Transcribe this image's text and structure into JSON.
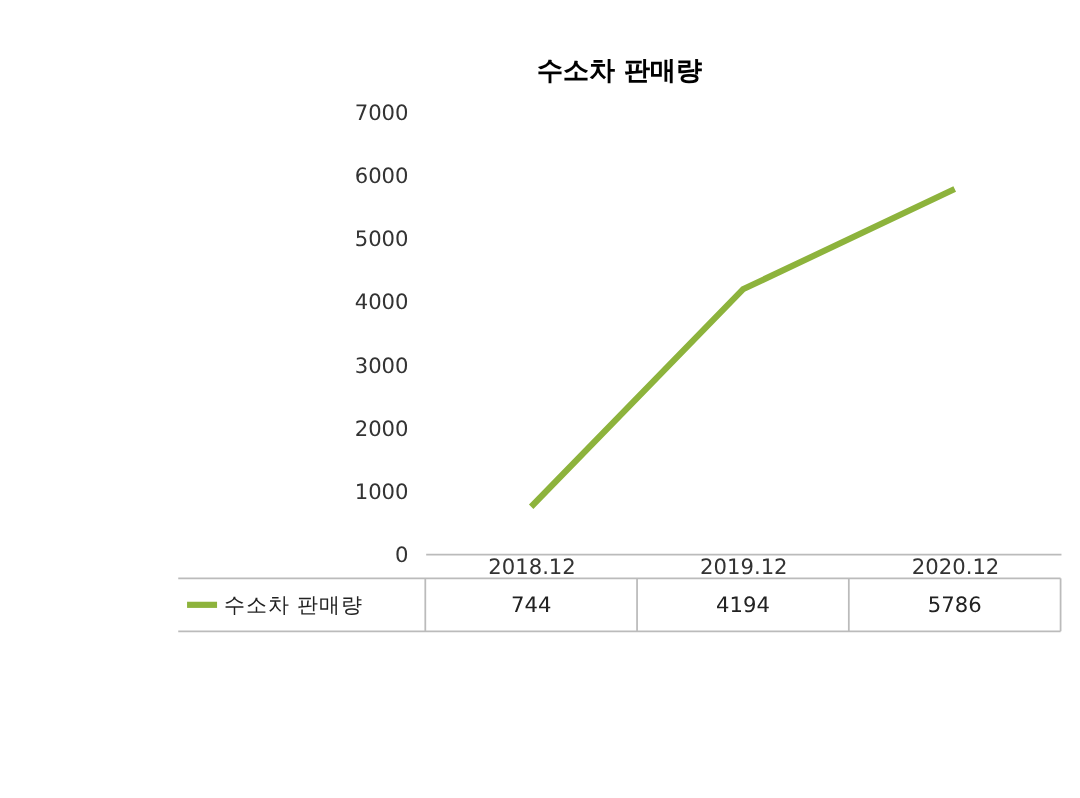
{
  "chart_data": {
    "type": "line",
    "title": "수소차 판매량",
    "categories": [
      "2018.12",
      "2019.12",
      "2020.12"
    ],
    "series": [
      {
        "name": "수소차 판매량",
        "color": "#8db33c",
        "values": [
          744,
          4194,
          5786
        ]
      }
    ],
    "ylim": [
      0,
      7000
    ],
    "yticks": [
      0,
      1000,
      2000,
      3000,
      4000,
      5000,
      6000,
      7000
    ],
    "grid": false,
    "legend": "bottom left",
    "data_labels": true,
    "marker": "none",
    "line_style": "solid"
  }
}
